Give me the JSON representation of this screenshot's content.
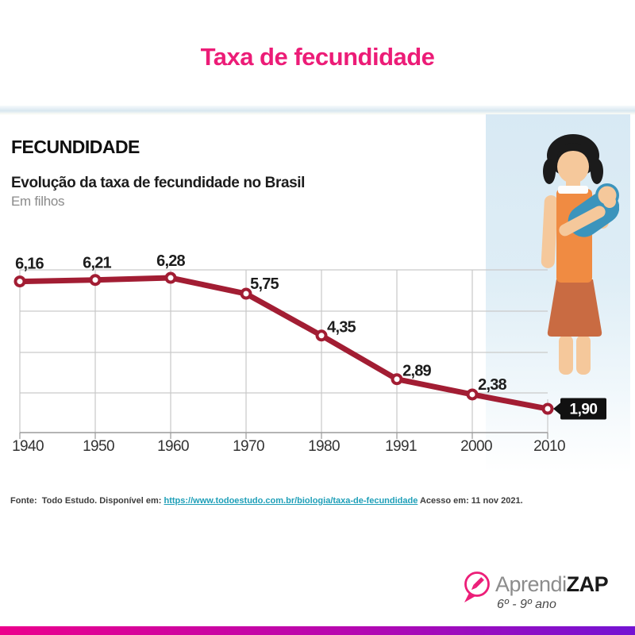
{
  "header": {
    "title": "Taxa de fecundidade"
  },
  "infographic": {
    "kicker": "FECUNDIDADE",
    "subtitle": "Evolução da taxa de fecundidade no Brasil",
    "unit_label": "Em filhos"
  },
  "chart_data": {
    "type": "line",
    "title": "Evolução da taxa de fecundidade no Brasil",
    "unit": "Em filhos",
    "categories": [
      "1940",
      "1950",
      "1960",
      "1970",
      "1980",
      "1991",
      "2000",
      "2010"
    ],
    "values": [
      6.16,
      6.21,
      6.28,
      5.75,
      4.35,
      2.89,
      2.38,
      1.9
    ],
    "point_labels": [
      "6,16",
      "6,21",
      "6,28",
      "5,75",
      "4,35",
      "2,89",
      "2,38",
      "1,90"
    ],
    "highlight_last_label": "1,90",
    "ylim": [
      1,
      7
    ],
    "grid": true,
    "legend": "none",
    "line_color": "#A21D33",
    "marker_fill": "#FFFFFF",
    "highlight_box_color": "#111111"
  },
  "source": {
    "prefix": "Fonte:  Todo Estudo. Disponível em: ",
    "link_text": "https://www.todoestudo.com.br/biologia/taxa-de-fecundidade",
    "suffix": " Acesso em: 11 nov 2021."
  },
  "footer": {
    "brand_prefix": "Aprendi",
    "brand_suffix": "ZAP",
    "grade_range": "6º - 9º ano"
  },
  "colors": {
    "title_pink": "#EC1C77",
    "line_maroon": "#A21D33",
    "link_teal": "#1E9FB8",
    "gradient_start": "#EC008C",
    "gradient_end": "#7313D3"
  }
}
